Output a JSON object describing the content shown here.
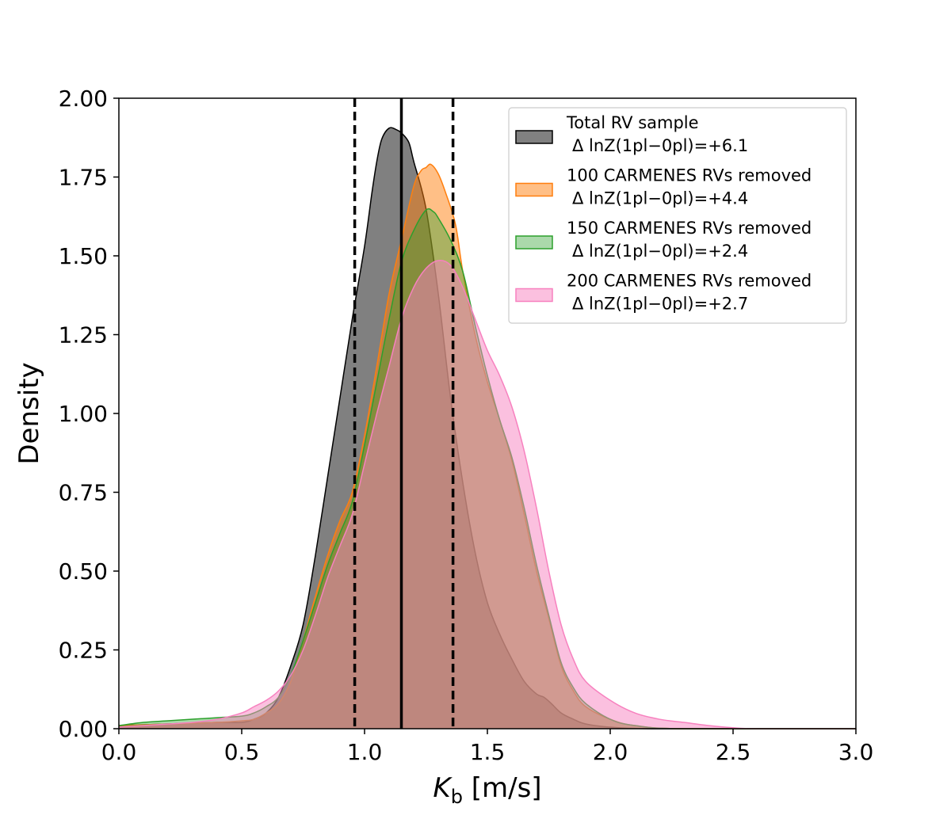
{
  "chart_data": {
    "type": "area",
    "title": "",
    "xlabel_main": "K",
    "xlabel_sub": "b",
    "xlabel_unit": " [m/s]",
    "ylabel": "Density",
    "xlim": [
      0.0,
      3.0
    ],
    "ylim": [
      0.0,
      2.0
    ],
    "xticks": [
      "0.0",
      "0.5",
      "1.0",
      "1.5",
      "2.0",
      "2.5",
      "3.0"
    ],
    "yticks": [
      "0.00",
      "0.25",
      "0.50",
      "0.75",
      "1.00",
      "1.25",
      "1.50",
      "1.75",
      "2.00"
    ],
    "reference_lines": {
      "median": 1.15,
      "lower": 0.96,
      "upper": 1.36
    },
    "legend_placement": "top-right",
    "series": [
      {
        "name": "Total RV sample",
        "evidence": "Δ lnZ(1pl−0pl)=+6.1",
        "fill": "#808080",
        "stroke": "#000000",
        "fill_opacity": 1.0,
        "points": [
          [
            0,
            0.01
          ],
          [
            0.2,
            0.015
          ],
          [
            0.4,
            0.02
          ],
          [
            0.5,
            0.02
          ],
          [
            0.55,
            0.03
          ],
          [
            0.6,
            0.05
          ],
          [
            0.65,
            0.1
          ],
          [
            0.7,
            0.2
          ],
          [
            0.75,
            0.33
          ],
          [
            0.8,
            0.55
          ],
          [
            0.85,
            0.8
          ],
          [
            0.9,
            1.05
          ],
          [
            0.95,
            1.3
          ],
          [
            1.0,
            1.53
          ],
          [
            1.03,
            1.7
          ],
          [
            1.05,
            1.8
          ],
          [
            1.07,
            1.87
          ],
          [
            1.1,
            1.905
          ],
          [
            1.13,
            1.9
          ],
          [
            1.15,
            1.89
          ],
          [
            1.18,
            1.86
          ],
          [
            1.2,
            1.8
          ],
          [
            1.25,
            1.65
          ],
          [
            1.3,
            1.38
          ],
          [
            1.35,
            1.05
          ],
          [
            1.4,
            0.78
          ],
          [
            1.45,
            0.56
          ],
          [
            1.5,
            0.4
          ],
          [
            1.55,
            0.3
          ],
          [
            1.6,
            0.22
          ],
          [
            1.65,
            0.15
          ],
          [
            1.7,
            0.11
          ],
          [
            1.73,
            0.1
          ],
          [
            1.76,
            0.08
          ],
          [
            1.8,
            0.05
          ],
          [
            1.85,
            0.03
          ],
          [
            1.9,
            0.015
          ],
          [
            2.0,
            0.005
          ],
          [
            2.2,
            0.0
          ],
          [
            3.0,
            0.0
          ]
        ]
      },
      {
        "name": "100 CARMENES RVs removed",
        "evidence": "Δ lnZ(1pl−0pl)=+4.4",
        "fill": "#ff7f0e",
        "stroke": "#ff7f0e",
        "fill_opacity": 0.5,
        "points": [
          [
            0,
            0.01
          ],
          [
            0.2,
            0.015
          ],
          [
            0.4,
            0.02
          ],
          [
            0.5,
            0.025
          ],
          [
            0.55,
            0.03
          ],
          [
            0.6,
            0.05
          ],
          [
            0.65,
            0.08
          ],
          [
            0.7,
            0.15
          ],
          [
            0.75,
            0.28
          ],
          [
            0.8,
            0.42
          ],
          [
            0.85,
            0.55
          ],
          [
            0.9,
            0.66
          ],
          [
            0.95,
            0.75
          ],
          [
            1.0,
            0.93
          ],
          [
            1.05,
            1.15
          ],
          [
            1.1,
            1.38
          ],
          [
            1.15,
            1.55
          ],
          [
            1.2,
            1.72
          ],
          [
            1.23,
            1.77
          ],
          [
            1.25,
            1.78
          ],
          [
            1.27,
            1.79
          ],
          [
            1.3,
            1.76
          ],
          [
            1.33,
            1.7
          ],
          [
            1.37,
            1.6
          ],
          [
            1.4,
            1.45
          ],
          [
            1.45,
            1.25
          ],
          [
            1.5,
            1.1
          ],
          [
            1.55,
            0.98
          ],
          [
            1.6,
            0.85
          ],
          [
            1.65,
            0.68
          ],
          [
            1.7,
            0.5
          ],
          [
            1.75,
            0.35
          ],
          [
            1.8,
            0.2
          ],
          [
            1.85,
            0.12
          ],
          [
            1.9,
            0.07
          ],
          [
            2.0,
            0.03
          ],
          [
            2.1,
            0.01
          ],
          [
            2.3,
            0.0
          ],
          [
            3.0,
            0.0
          ]
        ]
      },
      {
        "name": "150 CARMENES RVs removed",
        "evidence": "Δ lnZ(1pl−0pl)=+2.4",
        "fill": "#2ca02c",
        "stroke": "#2ca02c",
        "fill_opacity": 0.4,
        "points": [
          [
            0,
            0.01
          ],
          [
            0.1,
            0.02
          ],
          [
            0.2,
            0.025
          ],
          [
            0.3,
            0.03
          ],
          [
            0.4,
            0.035
          ],
          [
            0.5,
            0.04
          ],
          [
            0.55,
            0.05
          ],
          [
            0.6,
            0.07
          ],
          [
            0.65,
            0.1
          ],
          [
            0.7,
            0.17
          ],
          [
            0.75,
            0.28
          ],
          [
            0.8,
            0.4
          ],
          [
            0.85,
            0.52
          ],
          [
            0.9,
            0.62
          ],
          [
            0.95,
            0.72
          ],
          [
            1.0,
            0.9
          ],
          [
            1.05,
            1.1
          ],
          [
            1.1,
            1.3
          ],
          [
            1.15,
            1.48
          ],
          [
            1.2,
            1.58
          ],
          [
            1.25,
            1.645
          ],
          [
            1.28,
            1.64
          ],
          [
            1.3,
            1.62
          ],
          [
            1.35,
            1.55
          ],
          [
            1.4,
            1.45
          ],
          [
            1.45,
            1.28
          ],
          [
            1.5,
            1.12
          ],
          [
            1.55,
            0.98
          ],
          [
            1.6,
            0.86
          ],
          [
            1.65,
            0.7
          ],
          [
            1.7,
            0.52
          ],
          [
            1.75,
            0.36
          ],
          [
            1.8,
            0.21
          ],
          [
            1.85,
            0.13
          ],
          [
            1.9,
            0.08
          ],
          [
            2.0,
            0.03
          ],
          [
            2.1,
            0.01
          ],
          [
            2.3,
            0.0
          ],
          [
            3.0,
            0.0
          ]
        ]
      },
      {
        "name": "200 CARMENES RVs removed",
        "evidence": "Δ lnZ(1pl−0pl)=+2.7",
        "fill": "#f781bf",
        "stroke": "#f781bf",
        "fill_opacity": 0.5,
        "points": [
          [
            0,
            0.005
          ],
          [
            0.1,
            0.01
          ],
          [
            0.2,
            0.015
          ],
          [
            0.3,
            0.02
          ],
          [
            0.4,
            0.03
          ],
          [
            0.5,
            0.05
          ],
          [
            0.55,
            0.07
          ],
          [
            0.6,
            0.09
          ],
          [
            0.65,
            0.12
          ],
          [
            0.7,
            0.17
          ],
          [
            0.75,
            0.25
          ],
          [
            0.8,
            0.36
          ],
          [
            0.85,
            0.48
          ],
          [
            0.9,
            0.58
          ],
          [
            0.95,
            0.68
          ],
          [
            1.0,
            0.84
          ],
          [
            1.05,
            1.0
          ],
          [
            1.1,
            1.15
          ],
          [
            1.15,
            1.3
          ],
          [
            1.2,
            1.4
          ],
          [
            1.25,
            1.46
          ],
          [
            1.3,
            1.485
          ],
          [
            1.35,
            1.47
          ],
          [
            1.4,
            1.4
          ],
          [
            1.45,
            1.3
          ],
          [
            1.5,
            1.2
          ],
          [
            1.55,
            1.12
          ],
          [
            1.6,
            1.02
          ],
          [
            1.65,
            0.88
          ],
          [
            1.7,
            0.7
          ],
          [
            1.75,
            0.5
          ],
          [
            1.8,
            0.33
          ],
          [
            1.85,
            0.22
          ],
          [
            1.9,
            0.15
          ],
          [
            2.0,
            0.09
          ],
          [
            2.1,
            0.05
          ],
          [
            2.2,
            0.03
          ],
          [
            2.3,
            0.02
          ],
          [
            2.4,
            0.01
          ],
          [
            2.5,
            0.003
          ],
          [
            2.6,
            0.0
          ],
          [
            3.0,
            0.0
          ]
        ]
      }
    ]
  }
}
